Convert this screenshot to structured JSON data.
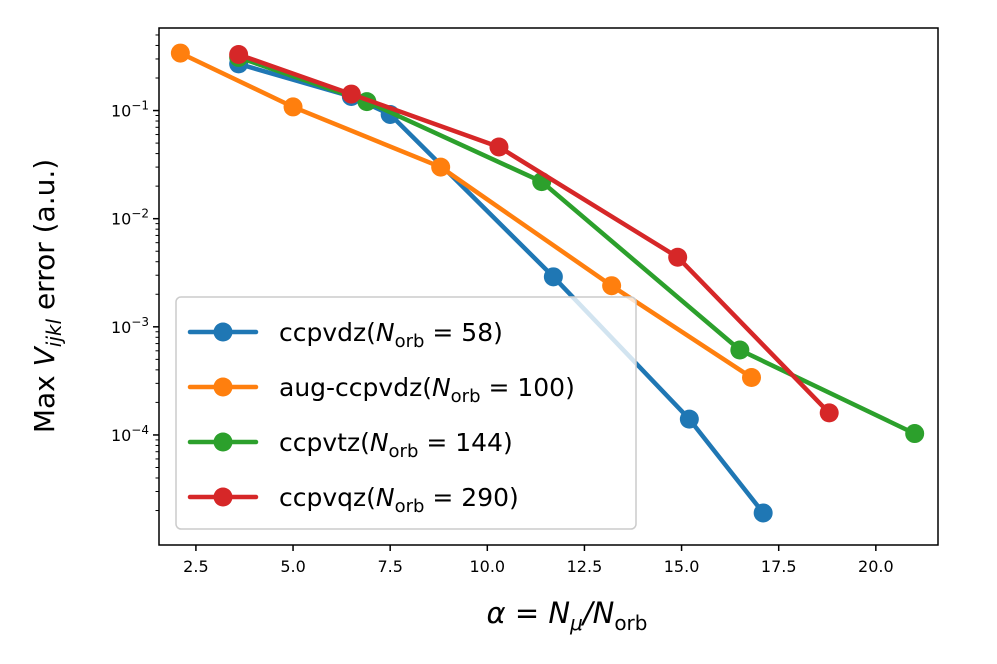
{
  "chart_data": {
    "type": "line",
    "title": "",
    "x_scale": "linear",
    "y_scale": "log",
    "xlim": [
      1.55,
      21.6
    ],
    "ylim": [
      9.6e-06,
      0.58
    ],
    "xlabel": {
      "main": "α",
      "eq": " = ",
      "n": "N",
      "n_sub": "μ",
      "slash": "/",
      "d": "N",
      "d_sub": "orb"
    },
    "ylabel": {
      "pre": "Max ",
      "v": "V",
      "v_sub": "ijkl",
      "post": " error (a.u.)"
    },
    "x_ticks": [
      {
        "value": 2.5,
        "label": "2.5"
      },
      {
        "value": 5.0,
        "label": "5.0"
      },
      {
        "value": 7.5,
        "label": "7.5"
      },
      {
        "value": 10.0,
        "label": "10.0"
      },
      {
        "value": 12.5,
        "label": "12.5"
      },
      {
        "value": 15.0,
        "label": "15.0"
      },
      {
        "value": 17.5,
        "label": "17.5"
      },
      {
        "value": 20.0,
        "label": "20.0"
      }
    ],
    "y_ticks": [
      {
        "value": 0.1,
        "base": "10",
        "exp": "−1"
      },
      {
        "value": 0.01,
        "base": "10",
        "exp": "−2"
      },
      {
        "value": 0.001,
        "base": "10",
        "exp": "−3"
      },
      {
        "value": 0.0001,
        "base": "10",
        "exp": "−4"
      }
    ],
    "legend_position": "lower-left",
    "series": [
      {
        "name": "ccpvdz",
        "legend": {
          "pre": "ccpvdz(",
          "n": "N",
          "sub": "orb",
          "post": " = 58)"
        },
        "color": "#1f77b4",
        "x": [
          3.6,
          6.5,
          7.5,
          11.7,
          15.2,
          17.1
        ],
        "y": [
          0.27,
          0.135,
          0.092,
          0.0029,
          0.00014,
          1.9e-05
        ]
      },
      {
        "name": "aug-ccpvdz",
        "legend": {
          "pre": "aug-ccpvdz(",
          "n": "N",
          "sub": "orb",
          "post": " = 100)"
        },
        "color": "#ff7f0e",
        "x": [
          2.1,
          5.0,
          8.8,
          13.2,
          16.8
        ],
        "y": [
          0.34,
          0.108,
          0.03,
          0.0024,
          0.00034
        ]
      },
      {
        "name": "ccpvtz",
        "legend": {
          "pre": "ccpvtz(",
          "n": "N",
          "sub": "orb",
          "post": " = 144)"
        },
        "color": "#2ca02c",
        "x": [
          3.6,
          6.9,
          11.4,
          16.5,
          21.0
        ],
        "y": [
          0.31,
          0.121,
          0.022,
          0.00061,
          0.000103
        ]
      },
      {
        "name": "ccpvqz",
        "legend": {
          "pre": "ccpvqz(",
          "n": "N",
          "sub": "orb",
          "post": " = 290)"
        },
        "color": "#d62728",
        "x": [
          3.6,
          6.5,
          10.3,
          14.9,
          18.8
        ],
        "y": [
          0.33,
          0.142,
          0.046,
          0.0044,
          0.00016
        ]
      }
    ]
  }
}
